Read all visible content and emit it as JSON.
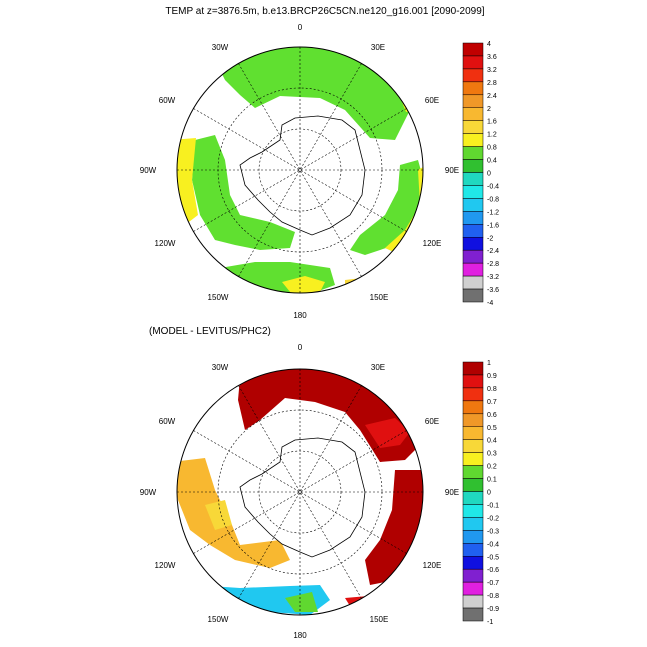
{
  "figure": {
    "title": "TEMP at z=3876.5m, b.e13.BRCP26C5CN.ne120_g16.001 [2090-2099]",
    "diff_title": "(MODEL - LEVITUS/PHC2)"
  },
  "panels": [
    {
      "id": "model",
      "longitude_labels": {
        "0": "0",
        "30E": "30E",
        "60E": "60E",
        "90E": "90E",
        "120E": "120E",
        "150E": "150E",
        "180": "180",
        "150W": "150W",
        "120W": "120W",
        "90W": "90W",
        "60W": "60W",
        "30W": "30W"
      },
      "colorbar": {
        "labels": [
          "4",
          "3.6",
          "3.2",
          "2.8",
          "2.4",
          "2",
          "1.6",
          "1.2",
          "0.8",
          "0.4",
          "0",
          "-0.4",
          "-0.8",
          "-1.2",
          "-1.6",
          "-2",
          "-2.4",
          "-2.8",
          "-3.2",
          "-3.6",
          "-4"
        ],
        "colors": [
          "#c00000",
          "#e01010",
          "#f03010",
          "#f07810",
          "#f09828",
          "#f8b830",
          "#f8d838",
          "#f8f020",
          "#60d830",
          "#30c030",
          "#20d8c0",
          "#20e8e8",
          "#20c8f0",
          "#2098f0",
          "#2060f0",
          "#1010e0",
          "#8020d0",
          "#e020e0",
          "#d0d0d0",
          "#707070"
        ]
      },
      "regions": [
        {
          "name": "atlantic-sector",
          "value_color": "#60e030"
        },
        {
          "name": "indian-sector",
          "value_color": "#60e030"
        },
        {
          "name": "pacific-sector",
          "value_color": "#60e030"
        },
        {
          "name": "warm-edges",
          "value_color": "#f8f020"
        }
      ]
    },
    {
      "id": "difference",
      "longitude_labels": {
        "0": "0",
        "30E": "30E",
        "60E": "60E",
        "90E": "90E",
        "120E": "120E",
        "150E": "150E",
        "180": "180",
        "150W": "150W",
        "120W": "120W",
        "90W": "90W",
        "60W": "60W",
        "30W": "30W"
      },
      "colorbar": {
        "labels": [
          "1",
          "0.9",
          "0.8",
          "0.7",
          "0.6",
          "0.5",
          "0.4",
          "0.3",
          "0.2",
          "0.1",
          "0",
          "-0.1",
          "-0.2",
          "-0.3",
          "-0.4",
          "-0.5",
          "-0.6",
          "-0.7",
          "-0.8",
          "-0.9",
          "-1"
        ],
        "colors": [
          "#b00000",
          "#e01010",
          "#f03010",
          "#f07810",
          "#f09828",
          "#f8b830",
          "#f8d838",
          "#f8f020",
          "#60d830",
          "#30c030",
          "#20d8c0",
          "#20e8e8",
          "#20c8f0",
          "#2098f0",
          "#2060f0",
          "#1010e0",
          "#8020d0",
          "#e020e0",
          "#d0d0d0",
          "#707070"
        ]
      },
      "regions": [
        {
          "name": "atlantic-indian-warm",
          "value_color": "#b00000"
        },
        {
          "name": "east-pacific-orange",
          "value_color": "#f0b030"
        },
        {
          "name": "ross-sea-cool",
          "value_color": "#20c8f0"
        }
      ]
    }
  ]
}
